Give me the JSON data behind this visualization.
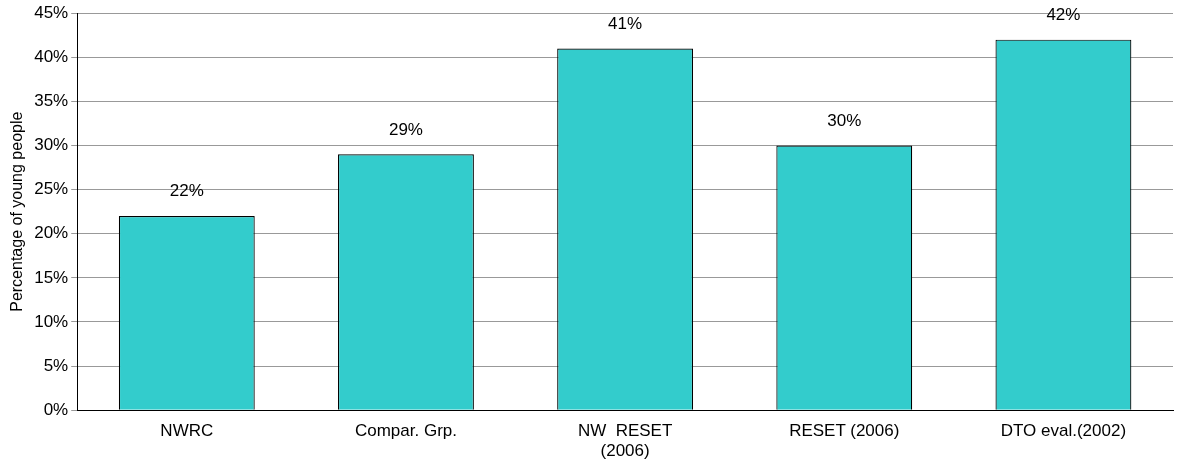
{
  "chart_data": {
    "type": "bar",
    "ylabel": "Percentage of young people",
    "categories": [
      "NWRC",
      "Compar. Grp.",
      "NW  RESET\n(2006)",
      "RESET (2006)",
      "DTO eval.(2002)"
    ],
    "values": [
      22,
      29,
      41,
      30,
      42
    ],
    "value_labels": [
      "22%",
      "29%",
      "41%",
      "30%",
      "42%"
    ],
    "color": "#33cccc",
    "ylim": [
      0,
      45
    ],
    "yticks": [
      {
        "value": 0,
        "label": "0%"
      },
      {
        "value": 5,
        "label": "5%"
      },
      {
        "value": 10,
        "label": "10%"
      },
      {
        "value": 15,
        "label": "15%"
      },
      {
        "value": 20,
        "label": "20%"
      },
      {
        "value": 25,
        "label": "25%"
      },
      {
        "value": 30,
        "label": "30%"
      },
      {
        "value": 35,
        "label": "35%"
      },
      {
        "value": 40,
        "label": "40%"
      },
      {
        "value": 45,
        "label": "45%"
      }
    ],
    "grid": "y",
    "legend": false
  }
}
